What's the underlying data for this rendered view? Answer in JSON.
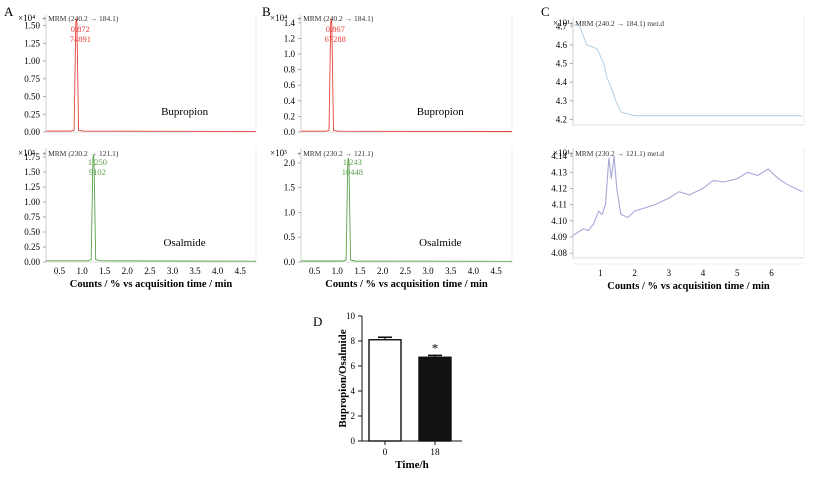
{
  "chart_data": [
    {
      "type": "line",
      "panel": "A",
      "subplots": [
        {
          "scale_label": "×10⁴",
          "trace_label": "+ MRM (240.2 → 184.1)",
          "compound": "Bupropion",
          "peak_rt": "0.872",
          "peak_area": "74891",
          "color": "#e8413c",
          "yticks": [
            "0.00",
            "0.25",
            "0.50",
            "0.75",
            "1.00",
            "1.25",
            "1.50"
          ],
          "ylim": [
            0,
            1.65
          ],
          "peak": {
            "x": 0.872,
            "y": 1.6
          },
          "baseline": 0.012
        },
        {
          "scale_label": "×10³",
          "trace_label": "+ MRM (230.2 → 121.1)",
          "compound": "Osalmide",
          "peak_rt": "1.250",
          "peak_area": "9102",
          "color": "#5aa14b",
          "yticks": [
            "0.00",
            "0.25",
            "0.50",
            "0.75",
            "1.00",
            "1.25",
            "1.50",
            "1.75"
          ],
          "ylim": [
            0,
            1.9
          ],
          "peak": {
            "x": 1.25,
            "y": 1.78
          },
          "baseline": 0.02
        }
      ],
      "xticks": [
        "0.5",
        "1.0",
        "1.5",
        "2.0",
        "2.5",
        "3.0",
        "3.5",
        "4.0",
        "4.5"
      ],
      "xlim": [
        0.2,
        4.85
      ],
      "xlabel": "Counts / % vs acquisition time / min"
    },
    {
      "type": "line",
      "panel": "B",
      "subplots": [
        {
          "scale_label": "×10⁴",
          "trace_label": "+ MRM (240.2 → 184.1)",
          "compound": "Bupropion",
          "peak_rt": "0.867",
          "peak_area": "67288",
          "color": "#e8413c",
          "yticks": [
            "0.0",
            "0.2",
            "0.4",
            "0.6",
            "0.8",
            "1.0",
            "1.2",
            "1.4"
          ],
          "ylim": [
            0,
            1.5
          ],
          "peak": {
            "x": 0.867,
            "y": 1.45
          },
          "baseline": 0.01
        },
        {
          "scale_label": "×10³",
          "trace_label": "+ MRM (230.2 → 121.1)",
          "compound": "Osalmide",
          "peak_rt": "1.243",
          "peak_area": "10448",
          "color": "#5aa14b",
          "yticks": [
            "0.0",
            "0.5",
            "1.0",
            "1.5",
            "2.0"
          ],
          "ylim": [
            0,
            2.3
          ],
          "peak": {
            "x": 1.243,
            "y": 2.1
          },
          "baseline": 0.02
        }
      ],
      "xticks": [
        "0.5",
        "1.0",
        "1.5",
        "2.0",
        "2.5",
        "3.0",
        "3.5",
        "4.0",
        "4.5"
      ],
      "xlim": [
        0.2,
        4.85
      ],
      "xlabel": "Counts / % vs acquisition time / min"
    },
    {
      "type": "line",
      "panel": "C",
      "subplots": [
        {
          "scale_label": "×10¹",
          "trace_label": "+ MRM (240.2 → 184.1) met.d",
          "color": "#b8d4e8",
          "yticks": [
            "4.2",
            "4.3",
            "4.4",
            "4.5",
            "4.6",
            "4.7"
          ],
          "ylim": [
            4.17,
            4.75
          ],
          "series": [
            [
              0.2,
              4.71
            ],
            [
              0.4,
              4.7
            ],
            [
              0.6,
              4.6
            ],
            [
              0.9,
              4.58
            ],
            [
              1.1,
              4.5
            ],
            [
              1.2,
              4.42
            ],
            [
              1.3,
              4.38
            ],
            [
              1.45,
              4.3
            ],
            [
              1.6,
              4.24
            ],
            [
              2.0,
              4.22
            ],
            [
              3.0,
              4.22
            ],
            [
              4.0,
              4.22
            ],
            [
              5.0,
              4.22
            ],
            [
              6.0,
              4.22
            ],
            [
              6.9,
              4.22
            ]
          ]
        },
        {
          "scale_label": "×10¹",
          "trace_label": "+ MRM (230.2 → 121.1) met.d",
          "color": "#a8a8d8",
          "yticks": [
            "4.08",
            "4.09",
            "4.10",
            "4.11",
            "4.12",
            "4.13",
            "4.14"
          ],
          "ylim": [
            4.077,
            4.145
          ],
          "series": [
            [
              0.2,
              4.091
            ],
            [
              0.35,
              4.093
            ],
            [
              0.5,
              4.095
            ],
            [
              0.65,
              4.094
            ],
            [
              0.8,
              4.098
            ],
            [
              0.95,
              4.106
            ],
            [
              1.05,
              4.104
            ],
            [
              1.15,
              4.11
            ],
            [
              1.25,
              4.139
            ],
            [
              1.32,
              4.126
            ],
            [
              1.4,
              4.14
            ],
            [
              1.48,
              4.12
            ],
            [
              1.6,
              4.104
            ],
            [
              1.8,
              4.102
            ],
            [
              2.0,
              4.106
            ],
            [
              2.3,
              4.108
            ],
            [
              2.6,
              4.11
            ],
            [
              3.0,
              4.114
            ],
            [
              3.3,
              4.118
            ],
            [
              3.6,
              4.116
            ],
            [
              4.0,
              4.12
            ],
            [
              4.3,
              4.125
            ],
            [
              4.6,
              4.124
            ],
            [
              5.0,
              4.126
            ],
            [
              5.3,
              4.13
            ],
            [
              5.6,
              4.128
            ],
            [
              5.9,
              4.132
            ],
            [
              6.2,
              4.126
            ],
            [
              6.5,
              4.122
            ],
            [
              6.9,
              4.118
            ]
          ]
        }
      ],
      "xticks": [
        "1",
        "2",
        "3",
        "4",
        "5",
        "6"
      ],
      "xlim": [
        0.2,
        6.95
      ],
      "xlabel": "Counts / % vs acquisition time / min"
    },
    {
      "type": "bar",
      "panel": "D",
      "categories": [
        "0",
        "18"
      ],
      "values": [
        8.1,
        6.7
      ],
      "errors": [
        0.2,
        0.15
      ],
      "significance": [
        "",
        "*"
      ],
      "bar_fill": [
        "#ffffff",
        "#111111"
      ],
      "yticks": [
        "0",
        "2",
        "4",
        "6",
        "8",
        "10"
      ],
      "ylim": [
        0,
        10
      ],
      "xlabel": "Time/h",
      "ylabel": "Bupropion/Osalmide"
    }
  ]
}
